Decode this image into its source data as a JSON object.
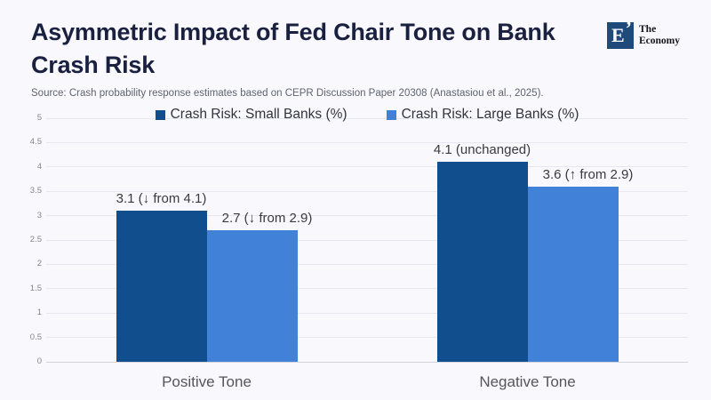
{
  "page": {
    "background": "#f8f8fd"
  },
  "header": {
    "title": "Asymmetric Impact of Fed Chair Tone on Bank Crash Risk",
    "logo": {
      "mark": "E",
      "quote": "’",
      "name_line1": "The",
      "name_line2": "Economy",
      "mark_color": "#1f4a7c"
    }
  },
  "source_note": "Source: Crash probability response estimates based on CEPR Discussion Paper 20308 (Anastasiou et al., 2025).",
  "chart_data": {
    "type": "bar",
    "title": "Asymmetric Impact of Fed Chair Tone on Bank Crash Risk",
    "categories": [
      "Positive Tone",
      "Negative Tone"
    ],
    "series": [
      {
        "name": "Crash Risk: Small Banks (%)",
        "color": "#114e8d",
        "values": [
          3.1,
          4.1
        ],
        "point_labels": [
          "3.1 (↓ from 4.1)",
          "4.1 (unchanged)"
        ]
      },
      {
        "name": "Crash Risk: Large Banks (%)",
        "color": "#4281d8",
        "values": [
          2.7,
          3.6
        ],
        "point_labels": [
          "2.7 (↓ from 2.9)",
          "3.6 (↑ from 2.9)"
        ]
      }
    ],
    "xlabel": "",
    "ylabel": "",
    "ylim": [
      0,
      5
    ],
    "ytick_step": 0.5,
    "grid": true,
    "legend_position": "top"
  },
  "colors": {
    "gridline": "#e6e8f1",
    "zero_line": "#d2d3da",
    "ytick_label": "#85858d",
    "value_label": "#3b3b3b",
    "category_label": "#55555c",
    "legend_label": "#33333c"
  }
}
